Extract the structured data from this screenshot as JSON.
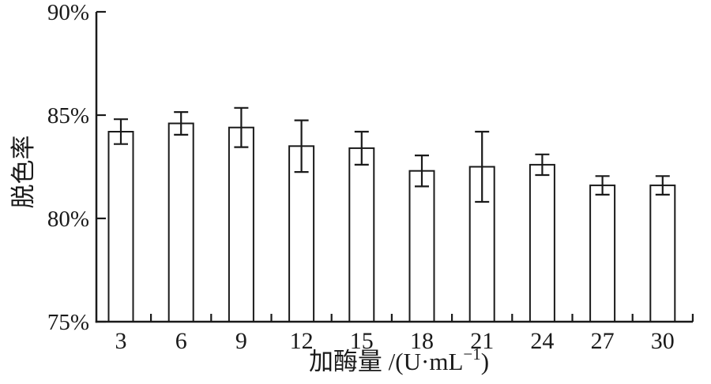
{
  "chart_data": {
    "type": "bar",
    "title": "",
    "xlabel": "加酶量 /(U·mL⁻¹)",
    "xlabel_parts": {
      "prefix": "加酶量 /(U·mL",
      "superscript": "−1",
      "suffix": ")"
    },
    "ylabel": "脱色率",
    "categories": [
      "3",
      "6",
      "9",
      "12",
      "15",
      "18",
      "21",
      "24",
      "27",
      "30"
    ],
    "values": [
      84.2,
      84.6,
      84.4,
      83.5,
      83.4,
      82.3,
      82.5,
      82.6,
      81.6,
      81.6
    ],
    "errors": [
      0.6,
      0.55,
      0.95,
      1.25,
      0.8,
      0.75,
      1.7,
      0.5,
      0.45,
      0.45
    ],
    "ylim": [
      75,
      90
    ],
    "yticks": [
      {
        "value": 90,
        "label": "90%"
      },
      {
        "value": 85,
        "label": "85%"
      },
      {
        "value": 80,
        "label": "80%"
      },
      {
        "value": 75,
        "label": "75%"
      }
    ],
    "grid": false,
    "legend": null,
    "bar_fill": "#ffffff",
    "stroke_color": "#1a1a1a",
    "background_color": "#ffffff"
  }
}
